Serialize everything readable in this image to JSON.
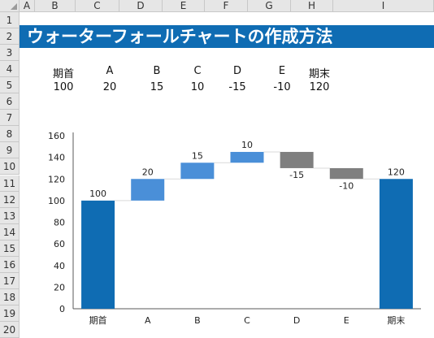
{
  "spreadsheet": {
    "column_headers": [
      "A",
      "B",
      "C",
      "D",
      "E",
      "F",
      "G",
      "H",
      "I"
    ],
    "row_headers": [
      "1",
      "2",
      "3",
      "4",
      "5",
      "6",
      "7",
      "8",
      "9",
      "10",
      "11",
      "12",
      "13",
      "14",
      "15",
      "16",
      "17",
      "18",
      "19",
      "20"
    ],
    "title": "ウォーターフォールチャートの作成方法",
    "table": {
      "labels": [
        "期首",
        "A",
        "B",
        "C",
        "D",
        "E",
        "期末"
      ],
      "values": [
        "100",
        "20",
        "15",
        "10",
        "-15",
        "-10",
        "120"
      ]
    }
  },
  "chart_data": {
    "type": "bar",
    "subtype": "waterfall",
    "categories": [
      "期首",
      "A",
      "B",
      "C",
      "D",
      "E",
      "期末"
    ],
    "values": [
      100,
      20,
      15,
      10,
      -15,
      -10,
      120
    ],
    "data_labels": [
      "100",
      "20",
      "15",
      "10",
      "-15",
      "-10",
      "120"
    ],
    "yticks": [
      "0",
      "20",
      "40",
      "60",
      "80",
      "100",
      "120",
      "140",
      "160"
    ],
    "ylim": [
      0,
      160
    ],
    "grid": false,
    "colors": {
      "total": "#0f6cb3",
      "increase": "#4a8fd8",
      "decrease": "#7f7f7f",
      "connector": "#d9d9d9"
    }
  }
}
